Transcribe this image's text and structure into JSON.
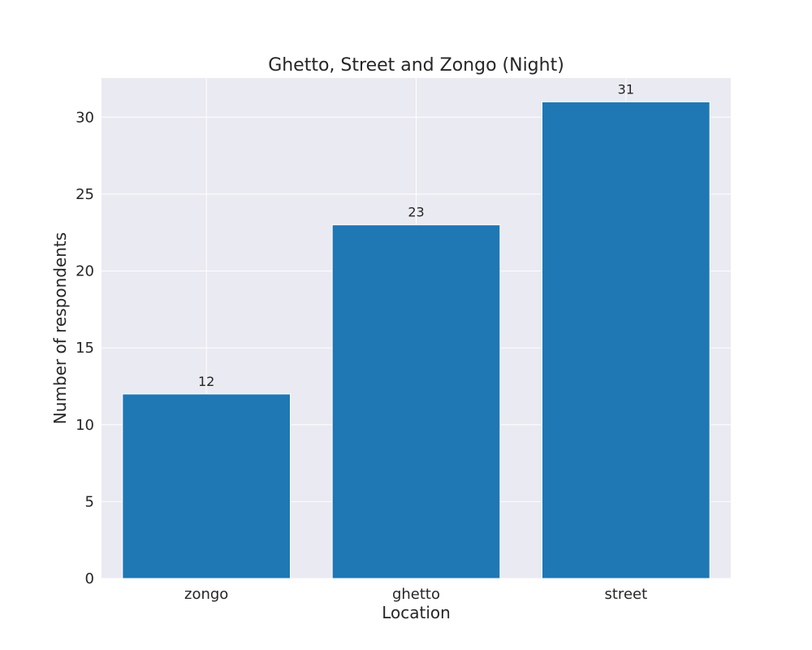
{
  "chart_data": {
    "type": "bar",
    "title": "Ghetto, Street and Zongo (Night)",
    "xlabel": "Location",
    "ylabel": "Number of respondents",
    "categories": [
      "zongo",
      "ghetto",
      "street"
    ],
    "values": [
      12,
      23,
      31
    ],
    "data_labels": [
      "12",
      "23",
      "31"
    ],
    "yticks": [
      0,
      5,
      10,
      15,
      20,
      25,
      30
    ],
    "ytick_labels": [
      "0",
      "5",
      "10",
      "15",
      "20",
      "25",
      "30"
    ],
    "ylim": [
      0,
      32.55
    ],
    "grid": true,
    "bar_color": "#1f77b4",
    "background_color": "#eaeaf2",
    "grid_color": "#ffffff"
  }
}
